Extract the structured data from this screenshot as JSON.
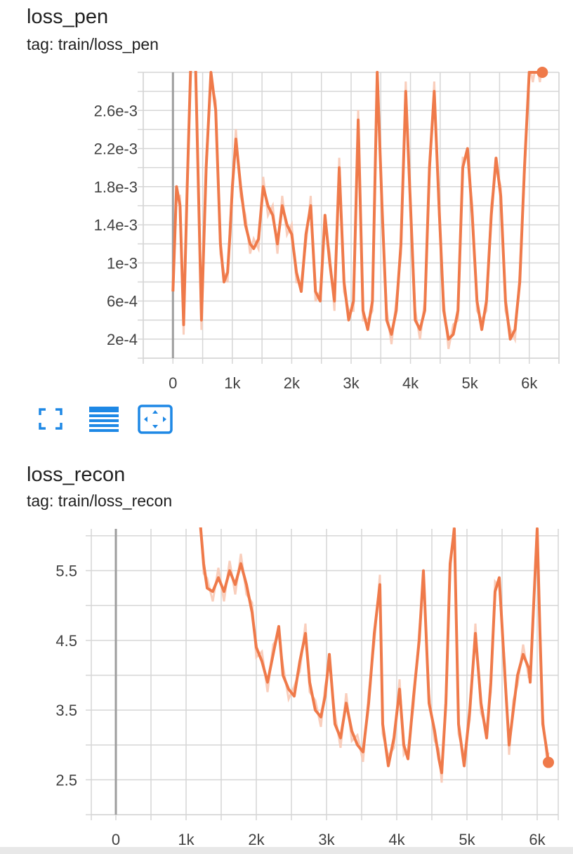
{
  "colors": {
    "line": "#ef7a4a",
    "raw": "#f8c9b5",
    "grid": "#d6d6d6",
    "zero": "#9e9e9e",
    "icon": "#1e88e5"
  },
  "cards": [
    {
      "title": "loss_pen",
      "tag": "tag: train/loss_pen",
      "x_ticks": [
        "0",
        "1k",
        "2k",
        "3k",
        "4k",
        "5k",
        "6k"
      ],
      "y_ticks": [
        "2.6e-3",
        "2.2e-3",
        "1.8e-3",
        "1.4e-3",
        "1e-3",
        "6e-4",
        "2e-4"
      ]
    },
    {
      "title": "loss_recon",
      "tag": "tag: train/loss_recon",
      "x_ticks": [
        "0",
        "1k",
        "2k",
        "3k",
        "4k",
        "5k",
        "6k"
      ],
      "y_ticks": [
        "5.5",
        "4.5",
        "3.5",
        "2.5"
      ]
    }
  ],
  "toolbar": {
    "icons": [
      "fullscreen-icon",
      "data-table-icon",
      "fit-domain-icon"
    ]
  },
  "chart_data": [
    {
      "type": "line",
      "ylim": [
        0.0,
        0.003
      ],
      "xlim": [
        -500,
        6500
      ],
      "x_ticks": [
        0,
        1000,
        2000,
        3000,
        4000,
        5000,
        6000
      ],
      "y_ticks": [
        0.0026,
        0.0022,
        0.0018,
        0.0014,
        0.001,
        0.0006,
        0.0002
      ],
      "series": [
        {
          "x": [
            0,
            60,
            120,
            180,
            240,
            300,
            380,
            480,
            560,
            640,
            720,
            800,
            860,
            920,
            960,
            1000,
            1060,
            1140,
            1220,
            1300,
            1360,
            1440,
            1520,
            1600,
            1680,
            1760,
            1840,
            1920,
            2000,
            2080,
            2160,
            2240,
            2320,
            2400,
            2480,
            2560,
            2640,
            2720,
            2800,
            2880,
            2960,
            3040,
            3120,
            3200,
            3280,
            3360,
            3440,
            3520,
            3600,
            3680,
            3760,
            3840,
            3920,
            4000,
            4080,
            4160,
            4240,
            4320,
            4400,
            4480,
            4560,
            4640,
            4720,
            4800,
            4880,
            4960,
            5040,
            5120,
            5200,
            5280,
            5360,
            5440,
            5520,
            5600,
            5680,
            5760,
            5840,
            5920,
            6000,
            6060,
            6120,
            6180,
            6220
          ],
          "y": [
            0.0007,
            0.0018,
            0.0016,
            0.00035,
            0.0018,
            0.0031,
            0.0031,
            0.0004,
            0.002,
            0.003,
            0.0026,
            0.0012,
            0.0008,
            0.0009,
            0.0013,
            0.0018,
            0.0023,
            0.0018,
            0.0014,
            0.0012,
            0.00115,
            0.00125,
            0.0018,
            0.0016,
            0.0015,
            0.0012,
            0.0016,
            0.0014,
            0.0013,
            0.0009,
            0.0007,
            0.0013,
            0.0016,
            0.0007,
            0.0006,
            0.0015,
            0.001,
            0.0006,
            0.002,
            0.0008,
            0.0004,
            0.0006,
            0.0025,
            0.0005,
            0.0003,
            0.0006,
            0.003,
            0.0016,
            0.0004,
            0.00025,
            0.0005,
            0.0012,
            0.0028,
            0.0016,
            0.0004,
            0.0003,
            0.0005,
            0.002,
            0.0028,
            0.0016,
            0.0005,
            0.0002,
            0.00025,
            0.0005,
            0.002,
            0.0022,
            0.0015,
            0.0006,
            0.0003,
            0.0006,
            0.0015,
            0.0021,
            0.0017,
            0.0006,
            0.0002,
            0.0003,
            0.0008,
            0.002,
            0.003,
            0.003,
            0.003,
            0.003,
            0.003
          ]
        }
      ]
    },
    {
      "type": "line",
      "ylim": [
        2.0,
        6.1
      ],
      "xlim": [
        -350,
        6300
      ],
      "x_ticks": [
        0,
        1000,
        2000,
        3000,
        4000,
        5000,
        6000
      ],
      "y_ticks": [
        5.5,
        4.5,
        3.5,
        2.5
      ],
      "series": [
        {
          "x": [
            1200,
            1250,
            1300,
            1380,
            1460,
            1540,
            1620,
            1700,
            1780,
            1860,
            1940,
            2000,
            2080,
            2160,
            2240,
            2320,
            2380,
            2460,
            2540,
            2620,
            2700,
            2760,
            2840,
            2920,
            2980,
            3040,
            3120,
            3200,
            3280,
            3360,
            3440,
            3520,
            3600,
            3680,
            3760,
            3800,
            3880,
            3960,
            4040,
            4100,
            4160,
            4240,
            4320,
            4380,
            4460,
            4540,
            4600,
            4640,
            4700,
            4760,
            4820,
            4880,
            4960,
            5040,
            5120,
            5200,
            5280,
            5340,
            5400,
            5460,
            5540,
            5600,
            5660,
            5720,
            5800,
            5880,
            5900,
            5940,
            6000,
            6040,
            6080,
            6140,
            6160
          ],
          "y": [
            6.2,
            5.6,
            5.25,
            5.2,
            5.4,
            5.2,
            5.5,
            5.3,
            5.6,
            5.3,
            4.9,
            4.4,
            4.2,
            3.9,
            4.3,
            4.7,
            4.0,
            3.8,
            3.7,
            4.2,
            4.6,
            3.9,
            3.5,
            3.4,
            3.7,
            4.3,
            3.3,
            3.1,
            3.6,
            3.2,
            3.0,
            2.9,
            3.6,
            4.6,
            5.3,
            3.3,
            2.7,
            3.1,
            3.8,
            3.0,
            2.8,
            3.7,
            4.5,
            5.5,
            3.6,
            3.2,
            2.8,
            2.6,
            3.6,
            5.6,
            6.1,
            3.3,
            2.7,
            3.5,
            4.6,
            3.6,
            3.1,
            3.9,
            5.2,
            5.4,
            4.0,
            3.0,
            3.5,
            4.0,
            4.3,
            4.1,
            3.9,
            4.8,
            6.1,
            4.6,
            3.3,
            2.9,
            2.75
          ]
        }
      ]
    }
  ]
}
